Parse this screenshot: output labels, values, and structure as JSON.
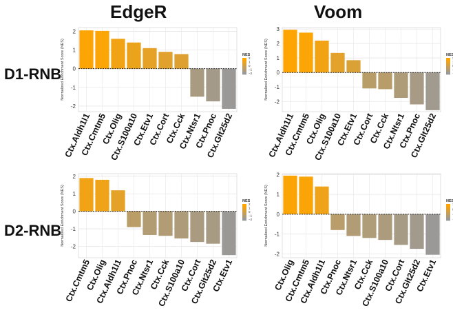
{
  "figure": {
    "column_titles": [
      "EdgeR",
      "Voom"
    ],
    "row_titles": [
      "D1-RNB",
      "D2-RNB"
    ]
  },
  "colors": {
    "high": "#FFA500",
    "low": "#999999",
    "grid": "#e6e6e6",
    "panel_border": "#cccccc"
  },
  "chart_data": [
    {
      "type": "bar",
      "panel": "EdgeR / D1-RNB",
      "ylabel": "Normalized Enrichment Score (NES)",
      "legend_title": "NES",
      "legend_ticks": [
        "2",
        "1",
        "0",
        "−1",
        "−2"
      ],
      "color_range": [
        -2.2,
        2.2
      ],
      "ylim": [
        -2.3,
        2.2
      ],
      "yticks": [
        2,
        1,
        0,
        -1,
        -2
      ],
      "ytick_labels": [
        "2",
        "1",
        "0",
        "-1",
        "-2"
      ],
      "categories": [
        "Ctx.Aldh1l1",
        "Ctx.Cmtm5",
        "Ctx.Olig",
        "Ctx.S100a10",
        "Ctx.Etv1",
        "Ctx.Cort",
        "Ctx.Cck",
        "Ctx.Ntsr1",
        "Ctx.Pnoc",
        "Ctx.Glt25d2"
      ],
      "values": [
        2.05,
        2.02,
        1.6,
        1.4,
        1.1,
        0.9,
        0.78,
        -1.5,
        -1.75,
        -2.15
      ]
    },
    {
      "type": "bar",
      "panel": "Voom / D1-RNB",
      "ylabel": "Normalized Enrichment Score (NES)",
      "legend_title": "NES",
      "legend_ticks": [
        "2",
        "1",
        "0",
        "−1",
        "−2"
      ],
      "color_range": [
        -3.0,
        3.0
      ],
      "ylim": [
        -2.7,
        3.1
      ],
      "yticks": [
        3,
        2,
        1,
        0,
        -1,
        -2
      ],
      "ytick_labels": [
        "3",
        "2",
        "1",
        "0",
        "-1",
        "-2"
      ],
      "categories": [
        "Ctx.Aldh1l1",
        "Ctx.Cmtm5",
        "Ctx.Olig",
        "Ctx.S100a10",
        "Ctx.Etv1",
        "Ctx.Cort",
        "Ctx.Cck",
        "Ctx.Ntsr1",
        "Ctx.Pnoc",
        "Ctx.Glt25d2"
      ],
      "values": [
        2.95,
        2.75,
        2.2,
        1.35,
        0.85,
        -1.1,
        -1.15,
        -1.75,
        -2.2,
        -2.6
      ]
    },
    {
      "type": "bar",
      "panel": "EdgeR / D2-RNB",
      "ylabel": "Normalized Enrichment Score (NES)",
      "legend_title": "NES",
      "legend_ticks": [
        "2",
        "1",
        "0",
        "−1",
        "−2"
      ],
      "color_range": [
        -2.6,
        2.6
      ],
      "ylim": [
        -2.65,
        2.15
      ],
      "yticks": [
        2,
        1,
        0,
        -1,
        -2
      ],
      "ytick_labels": [
        "2",
        "1",
        "0",
        "-1",
        "-2"
      ],
      "categories": [
        "Ctx.Cmtm5",
        "Ctx.Olig",
        "Ctx.Aldh1l1",
        "Ctx.Pnoc",
        "Ctx.Ntsr1",
        "Ctx.Cck",
        "Ctx.S100a10",
        "Ctx.Cort",
        "Ctx.Glt25d2",
        "Ctx.Etv1"
      ],
      "values": [
        1.9,
        1.8,
        1.2,
        -0.9,
        -1.35,
        -1.4,
        -1.55,
        -1.75,
        -1.85,
        -2.5
      ]
    },
    {
      "type": "bar",
      "panel": "Voom / D2-RNB",
      "ylabel": "Normalized Enrichment Score (NES)",
      "legend_title": "NES",
      "legend_ticks": [
        "1",
        "0",
        "−1",
        "−2"
      ],
      "color_range": [
        -2.1,
        2.1
      ],
      "ylim": [
        -2.2,
        2.05
      ],
      "yticks": [
        2,
        1,
        0,
        -1,
        -2
      ],
      "ytick_labels": [
        "2",
        "1",
        "0",
        "-1",
        "-2"
      ],
      "categories": [
        "Ctx.Olig",
        "Ctx.Cmtm5",
        "Ctx.Aldh1l1",
        "Ctx.Pnoc",
        "Ctx.Ntsr1",
        "Ctx.Cck",
        "Ctx.S100a10",
        "Ctx.Cort",
        "Ctx.Glt25d2",
        "Ctx.Etv1"
      ],
      "values": [
        1.95,
        1.9,
        1.4,
        -0.8,
        -1.1,
        -1.2,
        -1.3,
        -1.55,
        -1.75,
        -2.05
      ]
    }
  ]
}
